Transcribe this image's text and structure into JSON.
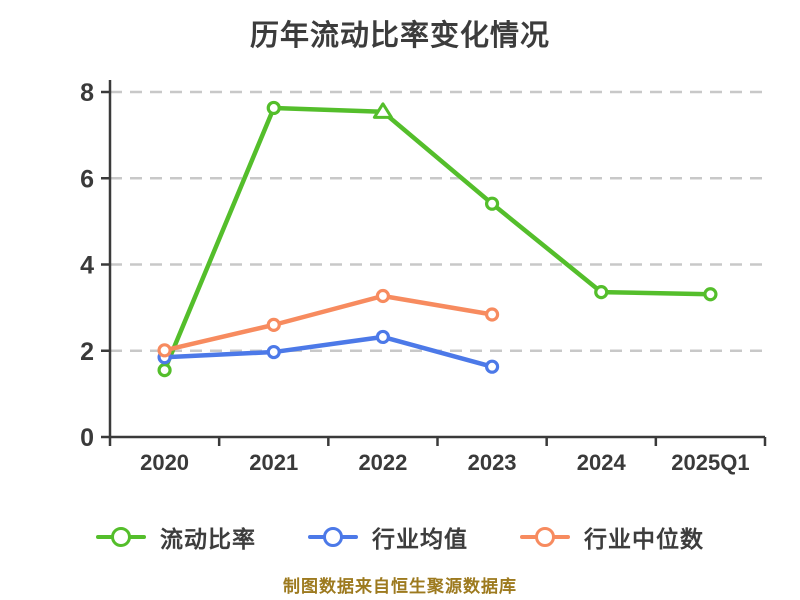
{
  "title": "历年流动比率变化情况",
  "footer": "制图数据来自恒生聚源数据库",
  "colors": {
    "background": "#ffffff",
    "title_text": "#3c3c3c",
    "axis": "#3a3a3a",
    "tick_label": "#3a3a3a",
    "grid": "#c8c8c8",
    "footer_text": "#9d7a1f",
    "series_green": "#54be2b",
    "series_blue": "#4c79e8",
    "series_orange": "#f78b5f"
  },
  "legend": {
    "items": [
      {
        "label": "流动比率",
        "color": "#54be2b"
      },
      {
        "label": "行业均值",
        "color": "#4c79e8"
      },
      {
        "label": "行业中位数",
        "color": "#f78b5f"
      }
    ]
  },
  "chart_data": {
    "type": "line",
    "title": "历年流动比率变化情况",
    "categories": [
      "2020",
      "2021",
      "2022",
      "2023",
      "2024",
      "2025Q1"
    ],
    "series": [
      {
        "name": "流动比率",
        "color": "#54be2b",
        "symbols": [
          "circle",
          "circle",
          "triangle",
          "circle",
          "circle",
          "circle"
        ],
        "values": [
          1.55,
          7.63,
          7.54,
          5.41,
          3.36,
          3.31
        ]
      },
      {
        "name": "行业均值",
        "color": "#4c79e8",
        "symbols": [
          "circle",
          "circle",
          "circle",
          "circle",
          "circle",
          "circle"
        ],
        "values": [
          1.85,
          1.97,
          2.32,
          1.63,
          null,
          null
        ]
      },
      {
        "name": "行业中位数",
        "color": "#f78b5f",
        "symbols": [
          "circle",
          "circle",
          "circle",
          "circle",
          "circle",
          "circle"
        ],
        "values": [
          2.01,
          2.6,
          3.27,
          2.84,
          null,
          null
        ]
      }
    ],
    "xlabel": "",
    "ylabel": "",
    "ylim": [
      0,
      8
    ],
    "yticks": [
      0,
      2,
      4,
      6,
      8
    ],
    "grid": "dashed-horizontal",
    "legend_position": "bottom",
    "annotation": "制图数据来自恒生聚源数据库"
  }
}
